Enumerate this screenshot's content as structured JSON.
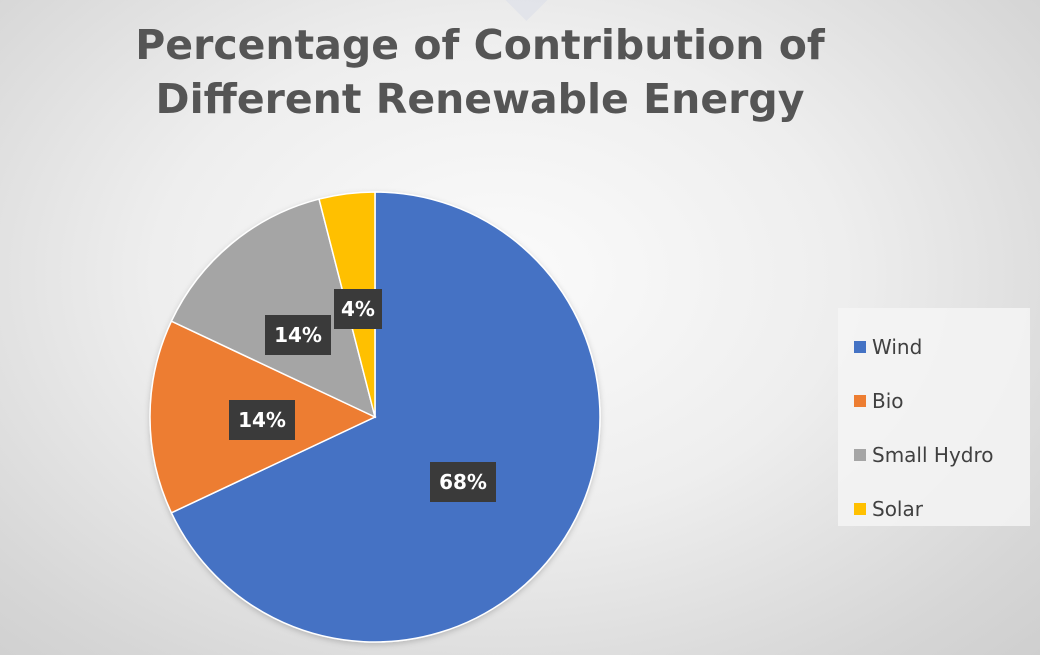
{
  "chart_data": {
    "type": "pie",
    "title_lines": [
      "Percentage of Contribution of",
      "Different Renewable Energy"
    ],
    "categories": [
      "Wind",
      "Bio",
      "Small Hydro",
      "Solar"
    ],
    "values": [
      68,
      14,
      14,
      4
    ],
    "data_labels": [
      "68%",
      "14%",
      "14%",
      "4%"
    ],
    "colors": [
      "#4472C4",
      "#ED7D31",
      "#A5A5A5",
      "#FFC000"
    ],
    "start_angle_deg": 0,
    "direction": "clockwise",
    "legend": {
      "position": "right",
      "entries": [
        "Wind",
        "Bio",
        "Small Hydro",
        "Solar"
      ]
    }
  }
}
